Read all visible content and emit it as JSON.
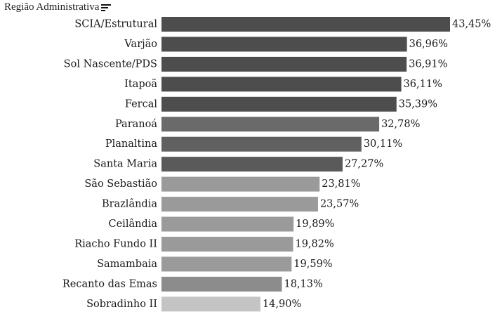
{
  "header": {
    "title": "Região Administrativa",
    "sort_icon": "sort-descending-icon"
  },
  "chart_data": {
    "type": "bar",
    "orientation": "horizontal",
    "xlabel": "",
    "ylabel": "Região Administrativa",
    "xlim": [
      0,
      43.45
    ],
    "grid": false,
    "legend": "none",
    "categories": [
      "SCIA/Estrutural",
      "Varjão",
      "Sol Nascente/PDS",
      "Itapoã",
      "Fercal",
      "Paranoá",
      "Planaltina",
      "Santa Maria",
      "São Sebastião",
      "Brazlândia",
      "Ceilândia",
      "Riacho Fundo II",
      "Samambaia",
      "Recanto das Emas",
      "Sobradinho II"
    ],
    "values": [
      43.45,
      36.96,
      36.91,
      36.11,
      35.39,
      32.78,
      30.11,
      27.27,
      23.81,
      23.57,
      19.89,
      19.82,
      19.59,
      18.13,
      14.9
    ],
    "labels": [
      "43,45%",
      "36,96%",
      "36,91%",
      "36,11%",
      "35,39%",
      "32,78%",
      "30,11%",
      "27,27%",
      "23,81%",
      "23,57%",
      "19,89%",
      "19,82%",
      "19,59%",
      "18,13%",
      "14,90%"
    ],
    "colors": [
      "#4d4d4d",
      "#4d4d4d",
      "#4d4d4d",
      "#4d4d4d",
      "#4d4d4d",
      "#6a6a6a",
      "#606060",
      "#5a5a5a",
      "#9a9a9a",
      "#9a9a9a",
      "#9a9a9a",
      "#9a9a9a",
      "#9a9a9a",
      "#8c8c8c",
      "#c4c4c4"
    ]
  }
}
